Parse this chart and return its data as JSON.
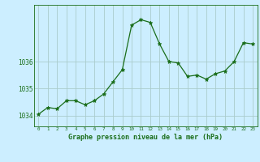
{
  "x": [
    0,
    1,
    2,
    3,
    4,
    5,
    6,
    7,
    8,
    9,
    10,
    11,
    12,
    13,
    14,
    15,
    16,
    17,
    18,
    19,
    20,
    21,
    22,
    23
  ],
  "y": [
    1034.05,
    1034.3,
    1034.25,
    1034.55,
    1034.55,
    1034.4,
    1034.55,
    1034.8,
    1035.25,
    1035.7,
    1037.35,
    1037.55,
    1037.45,
    1036.65,
    1036.0,
    1035.95,
    1035.45,
    1035.5,
    1035.35,
    1035.55,
    1035.65,
    1036.0,
    1036.7,
    1036.65
  ],
  "line_color": "#1a6e1a",
  "marker": "*",
  "marker_size": 3.5,
  "marker_color": "#1a6e1a",
  "bg_color": "#cceeff",
  "grid_color": "#aacccc",
  "xlabel": "Graphe pression niveau de la mer (hPa)",
  "xlabel_color": "#1a6e1a",
  "tick_color": "#1a6e1a",
  "yticks": [
    1034,
    1035,
    1036
  ],
  "ylim": [
    1033.6,
    1038.1
  ],
  "xlim": [
    -0.5,
    23.5
  ],
  "figwidth": 3.2,
  "figheight": 2.0,
  "dpi": 100
}
